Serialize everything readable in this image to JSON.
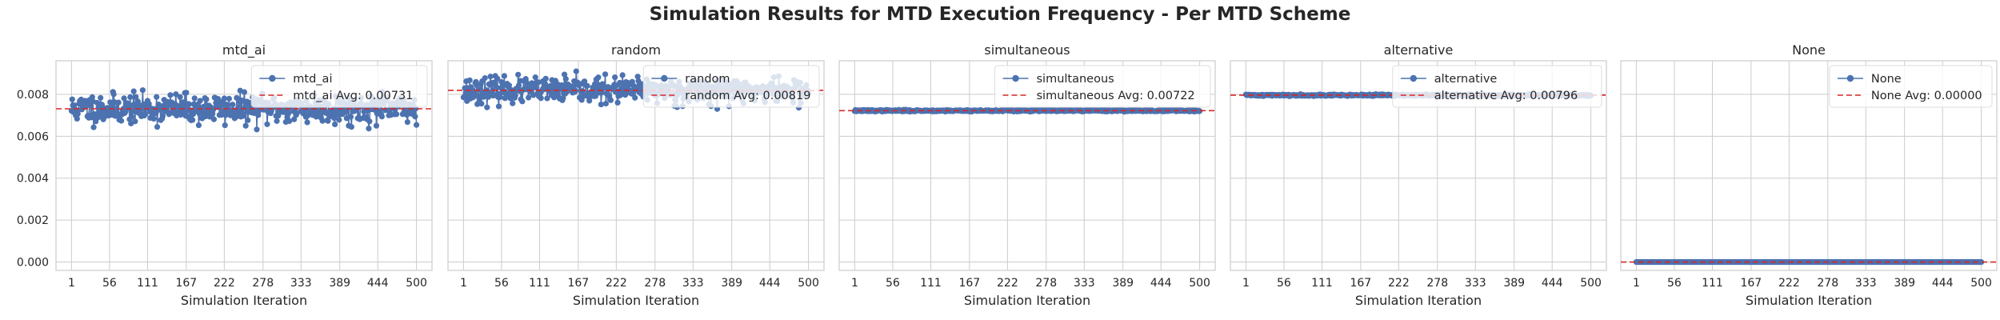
{
  "figure": {
    "title": "Simulation Results for MTD Execution Frequency - Per MTD Scheme"
  },
  "colors": {
    "series": "#4c72b0",
    "average_line": "#d62728",
    "grid": "#cccccc",
    "frame": "#cccccc",
    "legend_bg": "#ffffff"
  },
  "chart_data": [
    {
      "type": "line",
      "title": "mtd_ai",
      "xlabel": "Simulation Iteration",
      "ylabel": "",
      "x_range": [
        1,
        500
      ],
      "x_ticks": [
        1,
        56,
        111,
        167,
        222,
        278,
        333,
        389,
        444,
        500
      ],
      "ylim": [
        -0.0004,
        0.0096
      ],
      "y_ticks": [
        0.0,
        0.002,
        0.004,
        0.006,
        0.008
      ],
      "y_tick_labels": [
        "0.000",
        "0.002",
        "0.004",
        "0.006",
        "0.008"
      ],
      "show_y_tick_labels": true,
      "grid": true,
      "legend_position": "top-right",
      "series": [
        {
          "name": "mtd_ai",
          "marker": "circle",
          "mean": 0.00731,
          "spread": 0.00035,
          "min": 0.0063,
          "max": 0.0082,
          "seed": 11
        }
      ],
      "average": {
        "label": "mtd_ai Avg: 0.00731",
        "value": 0.00731,
        "style": "dashed"
      }
    },
    {
      "type": "line",
      "title": "random",
      "xlabel": "Simulation Iteration",
      "ylabel": "",
      "x_range": [
        1,
        500
      ],
      "x_ticks": [
        1,
        56,
        111,
        167,
        222,
        278,
        333,
        389,
        444,
        500
      ],
      "ylim": [
        -0.0004,
        0.0096
      ],
      "y_ticks": [
        0.0,
        0.002,
        0.004,
        0.006,
        0.008
      ],
      "show_y_tick_labels": false,
      "grid": true,
      "legend_position": "top-right",
      "series": [
        {
          "name": "random",
          "marker": "circle",
          "mean": 0.00819,
          "spread": 0.0003,
          "min": 0.0069,
          "max": 0.0091,
          "seed": 23
        }
      ],
      "average": {
        "label": "random Avg: 0.00819",
        "value": 0.00819,
        "style": "dashed"
      }
    },
    {
      "type": "line",
      "title": "simultaneous",
      "xlabel": "Simulation Iteration",
      "ylabel": "",
      "x_range": [
        1,
        500
      ],
      "x_ticks": [
        1,
        56,
        111,
        167,
        222,
        278,
        333,
        389,
        444,
        500
      ],
      "ylim": [
        -0.0004,
        0.0096
      ],
      "y_ticks": [
        0.0,
        0.002,
        0.004,
        0.006,
        0.008
      ],
      "show_y_tick_labels": false,
      "grid": true,
      "legend_position": "top-right",
      "series": [
        {
          "name": "simultaneous",
          "marker": "circle",
          "mean": 0.00722,
          "spread": 2e-05,
          "min": 0.00717,
          "max": 0.00727,
          "seed": 37
        }
      ],
      "average": {
        "label": "simultaneous Avg: 0.00722",
        "value": 0.00722,
        "style": "dashed"
      }
    },
    {
      "type": "line",
      "title": "alternative",
      "xlabel": "Simulation Iteration",
      "ylabel": "",
      "x_range": [
        1,
        500
      ],
      "x_ticks": [
        1,
        56,
        111,
        167,
        222,
        278,
        333,
        389,
        444,
        500
      ],
      "ylim": [
        -0.0004,
        0.0096
      ],
      "y_ticks": [
        0.0,
        0.002,
        0.004,
        0.006,
        0.008
      ],
      "show_y_tick_labels": false,
      "grid": true,
      "legend_position": "top-right",
      "series": [
        {
          "name": "alternative",
          "marker": "circle",
          "mean": 0.00796,
          "spread": 2e-05,
          "min": 0.00791,
          "max": 0.00801,
          "seed": 41
        }
      ],
      "average": {
        "label": "alternative Avg: 0.00796",
        "value": 0.00796,
        "style": "dashed"
      }
    },
    {
      "type": "line",
      "title": "None",
      "xlabel": "Simulation Iteration",
      "ylabel": "",
      "x_range": [
        1,
        500
      ],
      "x_ticks": [
        1,
        56,
        111,
        167,
        222,
        278,
        333,
        389,
        444,
        500
      ],
      "ylim": [
        -0.0004,
        0.0096
      ],
      "y_ticks": [
        0.0,
        0.002,
        0.004,
        0.006,
        0.008
      ],
      "show_y_tick_labels": false,
      "grid": true,
      "legend_position": "top-right",
      "series": [
        {
          "name": "None",
          "marker": "circle",
          "mean": 0.0,
          "spread": 0.0,
          "min": 0.0,
          "max": 0.0,
          "seed": 53
        }
      ],
      "average": {
        "label": "None Avg: 0.00000",
        "value": 0.0,
        "style": "dashed"
      }
    }
  ]
}
